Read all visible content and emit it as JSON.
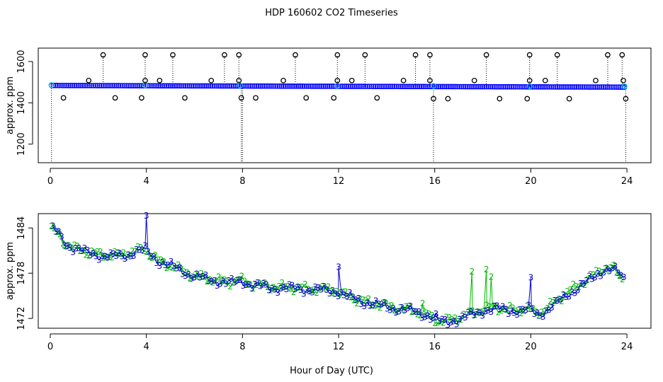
{
  "figure": {
    "title": "HDP  160602  CO2 Timeseries",
    "xlabel": "Hour of Day (UTC)"
  },
  "chart_data": [
    {
      "type": "scatter",
      "ylabel": "approx. ppm",
      "xlim": [
        -0.5,
        25
      ],
      "ylim": [
        1110,
        1665
      ],
      "xticks": [
        "0",
        "4",
        "8",
        "12",
        "16",
        "20",
        "24"
      ],
      "yticks": [
        "1200",
        "1400",
        "1600"
      ],
      "grid": false,
      "colors": {
        "baseline": "#0000ff",
        "accent": "#00cccc",
        "outlier": "#000000"
      },
      "baseline": {
        "x_range": [
          0.05,
          23.9
        ],
        "y_start": 1484,
        "y_end": 1476,
        "n": 300
      },
      "cyan_points": {
        "x": [
          0.05,
          3.95,
          7.9,
          11.95,
          15.95,
          19.95,
          23.9
        ],
        "y": [
          1486,
          1485,
          1484,
          1483,
          1482,
          1481,
          1480
        ]
      },
      "high_outliers": {
        "x": [
          2.2,
          3.95,
          5.1,
          7.25,
          7.85,
          10.2,
          11.95,
          13.1,
          15.2,
          15.8,
          18.15,
          19.95,
          21.1,
          23.2,
          23.8
        ],
        "y": [
          1632,
          1632,
          1632,
          1632,
          1632,
          1632,
          1632,
          1632,
          1632,
          1632,
          1632,
          1632,
          1632,
          1632,
          1632
        ]
      },
      "mid_outliers": {
        "x": [
          1.6,
          3.95,
          4.55,
          6.7,
          7.85,
          9.7,
          11.95,
          12.55,
          14.7,
          15.8,
          17.65,
          19.95,
          20.6,
          22.7,
          23.85
        ],
        "y": [
          1508,
          1508,
          1508,
          1508,
          1508,
          1508,
          1508,
          1508,
          1508,
          1508,
          1508,
          1508,
          1508,
          1508,
          1508
        ]
      },
      "low_outliers": {
        "x": [
          0.55,
          2.7,
          3.8,
          5.6,
          7.95,
          8.55,
          10.65,
          11.8,
          13.6,
          15.95,
          16.55,
          18.7,
          19.85,
          21.6,
          23.95
        ],
        "y": [
          1424,
          1424,
          1424,
          1424,
          1424,
          1424,
          1424,
          1424,
          1424,
          1420,
          1420,
          1420,
          1420,
          1420,
          1420
        ]
      },
      "drops": [
        {
          "x": 0.05,
          "y_to": 1110
        },
        {
          "x": 7.95,
          "y_to": 1110
        },
        {
          "x": 8.0,
          "y_to": 1110
        },
        {
          "x": 15.95,
          "y_to": 1110
        },
        {
          "x": 23.95,
          "y_to": 1110
        }
      ]
    },
    {
      "type": "line",
      "ylabel": "approx. ppm",
      "xlim": [
        -0.5,
        25
      ],
      "ylim": [
        1470.7,
        1485.9
      ],
      "xticks": [
        "0",
        "4",
        "8",
        "12",
        "16",
        "20",
        "24"
      ],
      "yticks": [
        "1472",
        "1478",
        "1484"
      ],
      "grid": false,
      "series": [
        {
          "label": "2",
          "color": "#00bb00"
        },
        {
          "label": "3",
          "color": "#0000cc"
        }
      ],
      "trend_x": [
        0,
        0.3,
        0.6,
        1,
        1.5,
        2,
        2.5,
        3,
        3.5,
        3.9,
        4.2,
        4.5,
        5,
        5.5,
        6,
        6.5,
        7,
        7.5,
        7.9,
        8.3,
        9,
        10,
        11,
        11.8,
        12.3,
        13,
        14,
        15,
        15.5,
        15.8,
        16,
        16.4,
        17,
        17.5,
        18,
        18.5,
        19,
        19.5,
        19.9,
        20.2,
        20.5,
        21,
        21.5,
        22,
        22.5,
        23,
        23.4,
        23.8
      ],
      "trend_y": [
        1484,
        1483.3,
        1482,
        1481.3,
        1480.8,
        1480.5,
        1480.3,
        1480.5,
        1480.9,
        1481.2,
        1480.4,
        1479.6,
        1479,
        1478.3,
        1477.6,
        1477.3,
        1477,
        1476.8,
        1477.1,
        1476.6,
        1476.2,
        1476.1,
        1475.9,
        1475.8,
        1475,
        1474.3,
        1473.6,
        1473.1,
        1472.7,
        1472.3,
        1471.8,
        1471.6,
        1472.1,
        1472.6,
        1473.2,
        1473.4,
        1473.2,
        1473.1,
        1473.3,
        1472.7,
        1473,
        1474.1,
        1475.4,
        1476.4,
        1477.4,
        1478.7,
        1478.6,
        1477.3
      ],
      "green_spikes": [
        {
          "x": 17.55,
          "y": 1478.2
        },
        {
          "x": 18.15,
          "y": 1478.5
        },
        {
          "x": 18.35,
          "y": 1477.5
        },
        {
          "x": 15.5,
          "y": 1474
        }
      ],
      "blue_spikes": [
        {
          "x": 4.0,
          "y": 1485.6
        },
        {
          "x": 12.0,
          "y": 1478.8
        },
        {
          "x": 20.0,
          "y": 1477.4
        },
        {
          "x": 16.05,
          "y": 1472.6
        }
      ]
    }
  ]
}
